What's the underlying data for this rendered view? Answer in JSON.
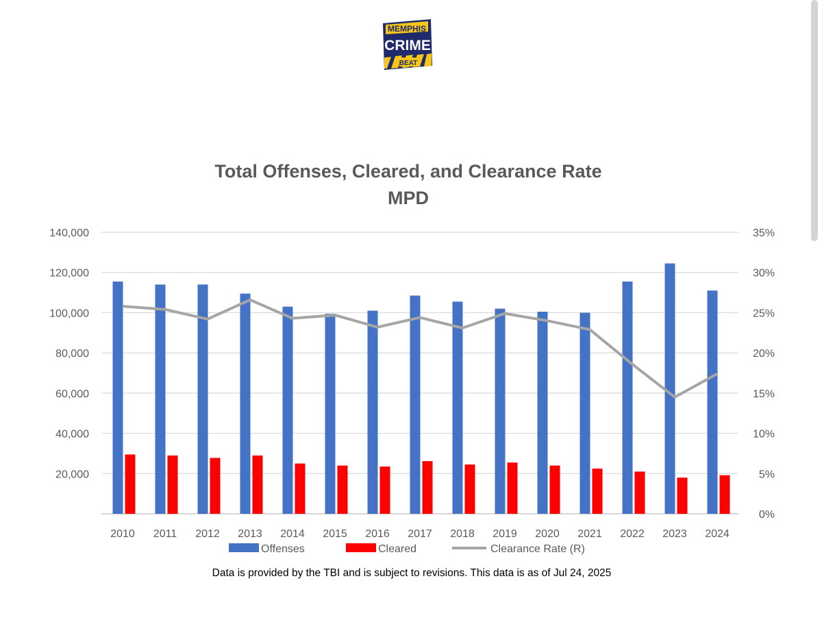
{
  "logo": {
    "line1": "MEMPHIS",
    "line2": "CRIME",
    "line3": "BEAT",
    "colors": {
      "background": "#1f2a6b",
      "accent": "#f5c518",
      "text_light": "#ffffff"
    }
  },
  "chart_data": {
    "type": "bar",
    "title": "Total Offenses, Cleared, and Clearance Rate",
    "subtitle": "MPD",
    "categories": [
      "2010",
      "2011",
      "2012",
      "2013",
      "2014",
      "2015",
      "2016",
      "2017",
      "2018",
      "2019",
      "2020",
      "2021",
      "2022",
      "2023",
      "2024"
    ],
    "series": [
      {
        "name": "Offenses",
        "type": "bar",
        "axis": "left",
        "color": "#4472c4",
        "values": [
          115500,
          114000,
          114000,
          109500,
          103000,
          99500,
          101000,
          108500,
          105500,
          102000,
          100500,
          100000,
          115500,
          124500,
          111000
        ]
      },
      {
        "name": "Cleared",
        "type": "bar",
        "axis": "left",
        "color": "#ff0000",
        "values": [
          29500,
          29000,
          27800,
          29000,
          25000,
          24000,
          23500,
          26200,
          24500,
          25500,
          24000,
          22500,
          21000,
          18000,
          19200
        ]
      },
      {
        "name": "Clearance Rate (R)",
        "type": "line",
        "axis": "right",
        "color": "#a5a5a5",
        "values": [
          25.8,
          25.4,
          24.2,
          26.6,
          24.3,
          24.7,
          23.2,
          24.4,
          23.1,
          24.9,
          24.0,
          22.9,
          18.6,
          14.5,
          17.4
        ]
      }
    ],
    "y_left": {
      "range": [
        0,
        140000
      ],
      "ticks": [
        0,
        20000,
        40000,
        60000,
        80000,
        100000,
        120000,
        140000
      ],
      "tick_labels": [
        "",
        "20,000",
        "40,000",
        "60,000",
        "80,000",
        "100,000",
        "120,000",
        "140,000"
      ]
    },
    "y_right": {
      "range": [
        0,
        35
      ],
      "ticks": [
        0,
        5,
        10,
        15,
        20,
        25,
        30,
        35
      ],
      "tick_labels": [
        "0%",
        "5%",
        "10%",
        "15%",
        "20%",
        "25%",
        "30%",
        "35%"
      ]
    },
    "grid": true,
    "gridline_color": "#d9d9d9",
    "legend": {
      "position": "bottom",
      "entries": [
        "Offenses",
        "Cleared",
        "Clearance Rate (R)"
      ]
    }
  },
  "footnote": "Data is provided by the TBI and is subject to revisions.  This data is as of Jul 24,  2025"
}
